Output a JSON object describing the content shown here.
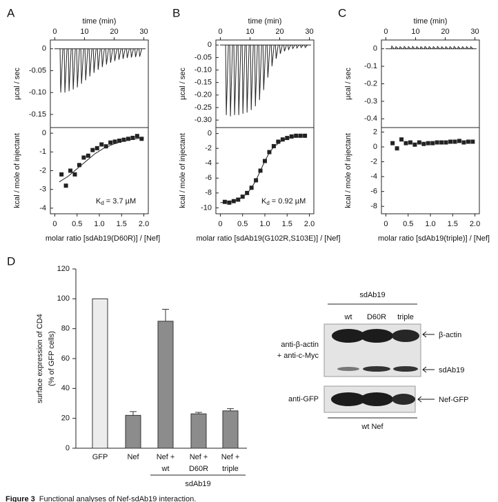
{
  "panel_labels": [
    "A",
    "B",
    "C",
    "D"
  ],
  "chart_data": [
    {
      "type": "spikes",
      "x_label": "time (min)",
      "y_label": "µcal / sec",
      "xlim": [
        -1.5,
        31.5
      ],
      "xticks": [
        0,
        10,
        20,
        30
      ],
      "ylim": [
        -0.18,
        0.02
      ],
      "yticks": [
        0,
        -0.05,
        {
          "value": -0.1,
          "label": "-0.10"
        },
        -0.15
      ],
      "x": [
        2,
        3.4,
        4.8,
        6.2,
        7.6,
        9,
        10.4,
        11.8,
        13.2,
        14.6,
        16,
        17.4,
        18.8,
        20.2,
        21.6,
        23,
        24.4,
        25.8,
        27.2,
        28.6
      ],
      "values": [
        -0.1,
        -0.1,
        -0.097,
        -0.093,
        -0.088,
        -0.08,
        -0.072,
        -0.063,
        -0.055,
        -0.048,
        -0.042,
        -0.036,
        -0.032,
        -0.028,
        -0.025,
        -0.023,
        -0.021,
        -0.02,
        -0.019,
        -0.018
      ]
    },
    {
      "type": "scatter",
      "x_label": "molar ratio [sdAb19(D60R)] / [Nef]",
      "y_label": "kcal / mole of injectant",
      "xlim": [
        -0.1,
        2.1
      ],
      "xticks": [
        0,
        0.5,
        {
          "value": 1,
          "label": "1.0"
        },
        1.5,
        {
          "value": 2,
          "label": "2.0"
        }
      ],
      "ylim": [
        -4.3,
        0.3
      ],
      "yticks": [
        0,
        -1,
        -2,
        -3,
        -4
      ],
      "x": [
        0.15,
        0.25,
        0.35,
        0.45,
        0.55,
        0.65,
        0.75,
        0.85,
        0.95,
        1.05,
        1.15,
        1.25,
        1.35,
        1.45,
        1.55,
        1.65,
        1.75,
        1.85,
        1.95
      ],
      "values": [
        -2.2,
        -2.8,
        -2.0,
        -2.2,
        -1.7,
        -1.3,
        -1.2,
        -0.9,
        -0.8,
        -0.6,
        -0.7,
        -0.5,
        -0.45,
        -0.4,
        -0.35,
        -0.3,
        -0.25,
        -0.15,
        -0.3
      ],
      "fit": {
        "x": [
          0.1,
          0.3,
          0.5,
          0.7,
          0.9,
          1.1,
          1.3,
          1.5,
          1.7,
          1.9,
          2.0
        ],
        "values": [
          -2.6,
          -2.3,
          -1.9,
          -1.5,
          -1.1,
          -0.8,
          -0.6,
          -0.45,
          -0.35,
          -0.27,
          -0.24
        ]
      },
      "annotation": {
        "symbol": "K",
        "subscript": "d",
        "text": "= 3.7 µM"
      }
    },
    {
      "type": "spikes",
      "x_label": "time (min)",
      "y_label": "µcal / sec",
      "xlim": [
        -1.5,
        31.5
      ],
      "xticks": [
        0,
        10,
        20,
        30
      ],
      "ylim": [
        -0.33,
        0.02
      ],
      "yticks": [
        0,
        -0.05,
        {
          "value": -0.1,
          "label": "-0.10"
        },
        -0.15,
        {
          "value": -0.2,
          "label": "-0.20"
        },
        -0.25,
        {
          "value": -0.3,
          "label": "-0.30"
        }
      ],
      "x": [
        2,
        3.4,
        4.8,
        6.2,
        7.6,
        9,
        10.4,
        11.8,
        13.2,
        14.6,
        16,
        17.4,
        18.8,
        20.2,
        21.6,
        23,
        24.4,
        25.8,
        27.2,
        28.6
      ],
      "values": [
        -0.28,
        -0.285,
        -0.28,
        -0.28,
        -0.275,
        -0.27,
        -0.26,
        -0.245,
        -0.22,
        -0.18,
        -0.13,
        -0.085,
        -0.055,
        -0.035,
        -0.025,
        -0.018,
        -0.014,
        -0.012,
        -0.01,
        -0.01
      ]
    },
    {
      "type": "scatter",
      "x_label": "molar ratio [sdAb19(G102R,S103E)] / [Nef]",
      "y_label": "kcal / mole of injectant",
      "xlim": [
        -0.1,
        2.1
      ],
      "xticks": [
        0,
        0.5,
        {
          "value": 1,
          "label": "1.0"
        },
        1.5,
        {
          "value": 2,
          "label": "2.0"
        }
      ],
      "ylim": [
        -10.8,
        0.8
      ],
      "yticks": [
        0,
        -2,
        -4,
        -6,
        -8,
        -10
      ],
      "x": [
        0.1,
        0.2,
        0.3,
        0.4,
        0.5,
        0.6,
        0.7,
        0.8,
        0.9,
        1.0,
        1.1,
        1.2,
        1.3,
        1.4,
        1.5,
        1.6,
        1.7,
        1.8,
        1.9
      ],
      "values": [
        -9.2,
        -9.3,
        -9.1,
        -8.9,
        -8.5,
        -8.0,
        -7.3,
        -6.3,
        -5.0,
        -3.7,
        -2.5,
        -1.7,
        -1.1,
        -0.8,
        -0.6,
        -0.4,
        -0.3,
        -0.3,
        -0.3
      ],
      "fit": {
        "x": [
          0.0,
          0.2,
          0.4,
          0.6,
          0.7,
          0.8,
          0.9,
          1.0,
          1.1,
          1.2,
          1.4,
          1.6,
          1.8,
          1.9
        ],
        "values": [
          -9.3,
          -9.2,
          -8.9,
          -8.1,
          -7.3,
          -6.3,
          -5.0,
          -3.7,
          -2.6,
          -1.8,
          -0.9,
          -0.5,
          -0.35,
          -0.3
        ]
      },
      "annotation": {
        "symbol": "K",
        "subscript": "d",
        "text": "= 0.92 µM"
      }
    },
    {
      "type": "spikes",
      "x_label": "time (min)",
      "y_label": "µcal / sec",
      "xlim": [
        -1.5,
        31.5
      ],
      "xticks": [
        0,
        10,
        20,
        30
      ],
      "ylim": [
        -0.45,
        0.05
      ],
      "yticks": [
        0,
        -0.1,
        -0.2,
        -0.3,
        -0.4
      ],
      "x": [
        2,
        3.4,
        4.8,
        6.2,
        7.6,
        9,
        10.4,
        11.8,
        13.2,
        14.6,
        16,
        17.4,
        18.8,
        20.2,
        21.6,
        23,
        24.4,
        25.8,
        27.2,
        28.6
      ],
      "values": [
        0.015,
        0.012,
        0.012,
        0.013,
        0.012,
        0.013,
        0.012,
        0.012,
        0.013,
        0.012,
        0.012,
        0.013,
        0.012,
        0.012,
        0.012,
        0.013,
        0.012,
        0.012,
        0.012,
        0.012
      ]
    },
    {
      "type": "scatter",
      "x_label": "molar ratio [sdAb19(triple)] / [Nef]",
      "y_label": "kcal / mole of injectant",
      "xlim": [
        -0.1,
        2.1
      ],
      "xticks": [
        0,
        0.5,
        {
          "value": 1,
          "label": "1.0"
        },
        1.5,
        {
          "value": 2,
          "label": "2.0"
        }
      ],
      "ylim": [
        -9,
        2.6
      ],
      "yticks": [
        2,
        0,
        -2,
        -4,
        -6,
        -8
      ],
      "x": [
        0.15,
        0.25,
        0.35,
        0.45,
        0.55,
        0.65,
        0.75,
        0.85,
        0.95,
        1.05,
        1.15,
        1.25,
        1.35,
        1.45,
        1.55,
        1.65,
        1.75,
        1.85,
        1.95
      ],
      "values": [
        0.5,
        -0.2,
        1.0,
        0.5,
        0.6,
        0.3,
        0.6,
        0.4,
        0.5,
        0.5,
        0.6,
        0.6,
        0.6,
        0.7,
        0.7,
        0.8,
        0.6,
        0.7,
        0.7
      ]
    },
    {
      "type": "bar",
      "y_label": [
        "surface expression of CD4",
        "(% of GFP cells)"
      ],
      "categories": [
        [
          "GFP"
        ],
        [
          "Nef"
        ],
        [
          "Nef +",
          "wt"
        ],
        [
          "Nef +",
          "D60R"
        ],
        [
          "Nef +",
          "triple"
        ]
      ],
      "values": [
        100,
        22,
        85,
        23,
        25
      ],
      "errors": [
        null,
        2.5,
        8,
        1,
        1.5
      ],
      "colors": [
        "#ececec",
        "#8c8c8c",
        "#8c8c8c",
        "#8c8c8c",
        "#8c8c8c"
      ],
      "group_label": "sdAb19",
      "ylim": [
        0,
        120
      ],
      "yticks": [
        0,
        20,
        40,
        60,
        80,
        100,
        120
      ]
    }
  ],
  "blot": {
    "group_label": "sdAb19",
    "lanes": [
      "wt",
      "D60R",
      "triple"
    ],
    "left_labels": [
      "anti-β-actin",
      "+ anti-c-Myc",
      "anti-GFP"
    ],
    "right_labels": [
      "β-actin",
      "sdAb19",
      "Nef-GFP"
    ],
    "bottom_label": "wt Nef"
  },
  "caption": {
    "label": "Figure 3",
    "text": "Functional analyses of Nef-sdAb19 interaction."
  }
}
